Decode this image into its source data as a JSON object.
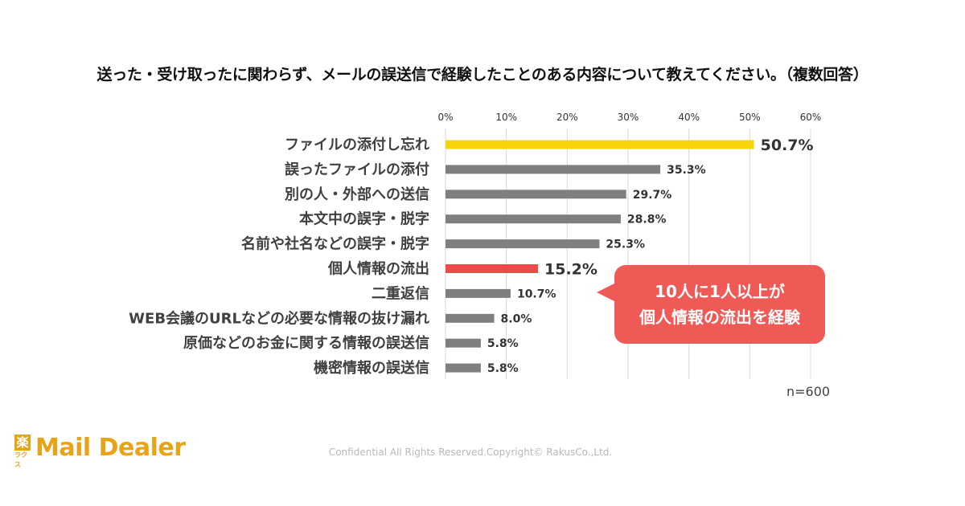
{
  "chart_data": {
    "type": "bar",
    "orientation": "horizontal",
    "title": "送った・受け取ったに関わらず、メールの誤送信で経験したことのある内容について教えてください。（複数回答）",
    "xlim": [
      0,
      60
    ],
    "x_ticks": [
      "0%",
      "10%",
      "20%",
      "30%",
      "40%",
      "50%",
      "60%"
    ],
    "x_tick_values": [
      0,
      10,
      20,
      30,
      40,
      50,
      60
    ],
    "grid": "vertical",
    "categories": [
      "ファイルの添付し忘れ",
      "誤ったファイルの添付",
      "別の人・外部への送信",
      "本文中の誤字・脱字",
      "名前や社名などの誤字・脱字",
      "個人情報の流出",
      "二重返信",
      "WEB会議のURLなどの必要な情報の抜け漏れ",
      "原価などのお金に関する情報の誤送信",
      "機密情報の誤送信"
    ],
    "values": [
      50.7,
      35.3,
      29.7,
      28.8,
      25.3,
      15.2,
      10.7,
      8.0,
      5.8,
      5.8
    ],
    "value_labels": [
      "50.7%",
      "35.3%",
      "29.7%",
      "28.8%",
      "25.3%",
      "15.2%",
      "10.7%",
      "8.0%",
      "5.8%",
      "5.8%"
    ],
    "bar_colors": [
      "#f6d30a",
      "#7f7f7f",
      "#7f7f7f",
      "#7f7f7f",
      "#7f7f7f",
      "#ef4a4a",
      "#7f7f7f",
      "#7f7f7f",
      "#7f7f7f",
      "#7f7f7f"
    ],
    "label_colors": [
      "#e8c400",
      "#333333",
      "#333333",
      "#333333",
      "#333333",
      "#c0161b",
      "#333333",
      "#333333",
      "#333333",
      "#333333"
    ],
    "sample_note": "n=600"
  },
  "callout": {
    "line1": "10人に1人以上が",
    "line2": "個人情報の流出を経験",
    "color": "#ef5a56"
  },
  "logo": {
    "mark": "楽",
    "mark_sub": "ラクス",
    "text": "Mail Dealer",
    "color": "#e8a317"
  },
  "footer": {
    "copyright": "Confidential All Rights Reserved.Copyright© RakusCo.,Ltd."
  }
}
